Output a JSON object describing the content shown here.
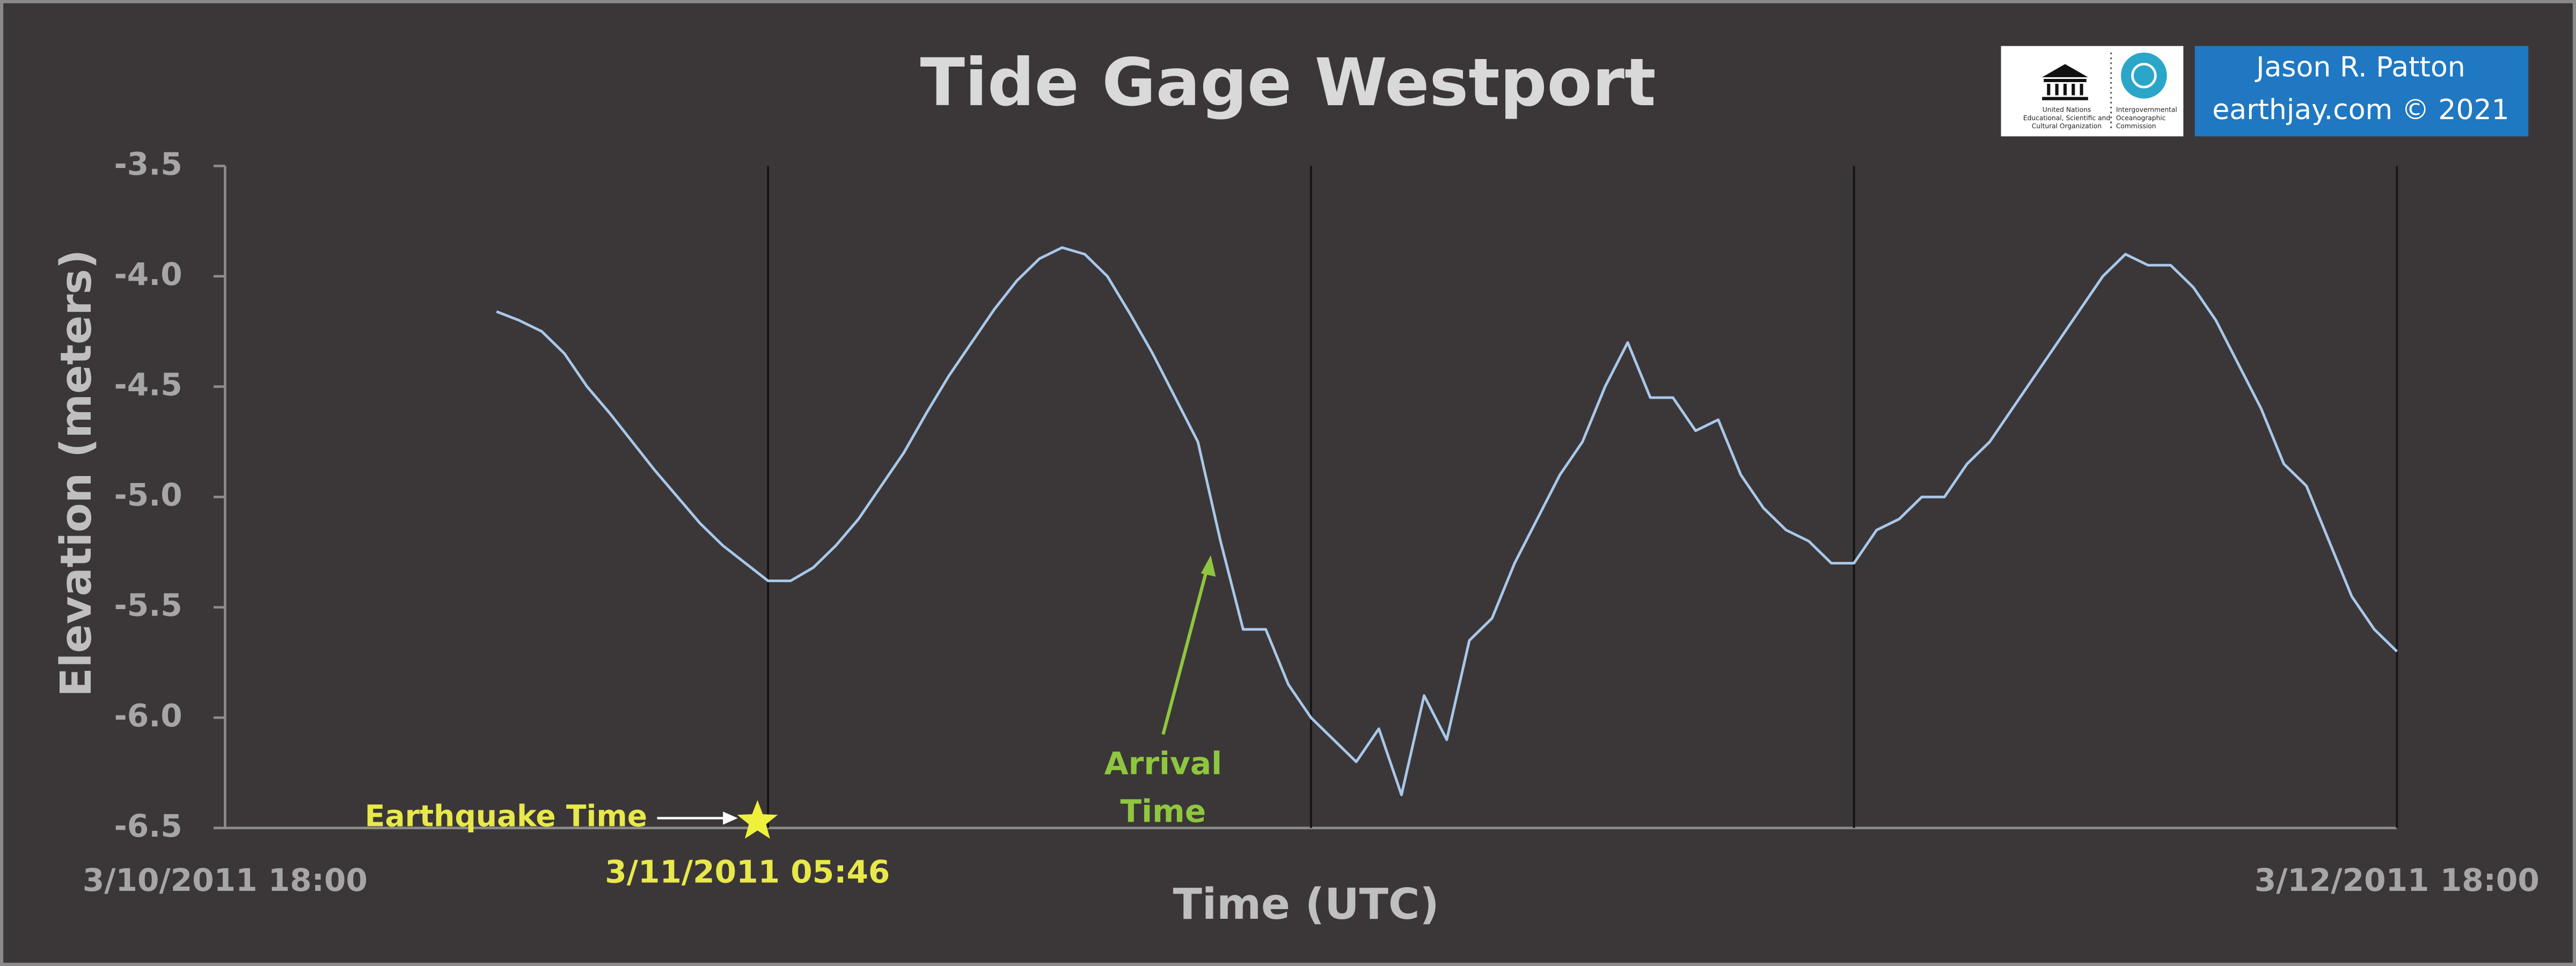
{
  "chart_data": {
    "type": "line",
    "title": "Tide Gage Westport",
    "x_label": "Time (UTC)",
    "y_label": "Elevation (meters)",
    "color": "#a9c8ea",
    "xlim": [
      "3/10/2011 18:00",
      "3/12/2011 18:00"
    ],
    "xticks": [
      "3/10/2011 18:00",
      "3/12/2011 18:00"
    ],
    "xgrid": [
      "3/11/2011 06:00",
      "3/11/2011 18:00",
      "3/12/2011 06:00",
      "3/12/2011 18:00"
    ],
    "ylim": [
      -6.5,
      -3.5
    ],
    "yticks": [
      -6.5,
      {
        "value": -6,
        "label": "-6.0"
      },
      -5.5,
      {
        "value": -5,
        "label": "-5.0"
      },
      -4.5,
      {
        "value": -4,
        "label": "-4.0"
      },
      -3.5
    ],
    "annotations": {
      "earthquake": "Earthquake Time",
      "event_time": "3/11/2011 05:46",
      "arrival": [
        "Arrival",
        "Time"
      ]
    },
    "x": [
      "3/11/2011 00:00",
      "3/11/2011 00:30",
      "3/11/2011 01:00",
      "3/11/2011 01:30",
      "3/11/2011 02:00",
      "3/11/2011 02:30",
      "3/11/2011 03:00",
      "3/11/2011 03:30",
      "3/11/2011 04:00",
      "3/11/2011 04:30",
      "3/11/2011 05:00",
      "3/11/2011 05:30",
      "3/11/2011 06:00",
      "3/11/2011 06:30",
      "3/11/2011 07:00",
      "3/11/2011 07:30",
      "3/11/2011 08:00",
      "3/11/2011 08:30",
      "3/11/2011 09:00",
      "3/11/2011 09:30",
      "3/11/2011 10:00",
      "3/11/2011 10:30",
      "3/11/2011 11:00",
      "3/11/2011 11:30",
      "3/11/2011 12:00",
      "3/11/2011 12:30",
      "3/11/2011 13:00",
      "3/11/2011 13:30",
      "3/11/2011 14:00",
      "3/11/2011 14:30",
      "3/11/2011 15:00",
      "3/11/2011 15:30",
      "3/11/2011 16:00",
      "3/11/2011 16:30",
      "3/11/2011 17:00",
      "3/11/2011 17:30",
      "3/11/2011 18:00",
      "3/11/2011 18:30",
      "3/11/2011 19:00",
      "3/11/2011 19:30",
      "3/11/2011 20:00",
      "3/11/2011 20:30",
      "3/11/2011 21:00",
      "3/11/2011 21:30",
      "3/11/2011 22:00",
      "3/11/2011 22:30",
      "3/11/2011 23:00",
      "3/11/2011 23:30",
      "3/12/2011 00:00",
      "3/12/2011 00:30",
      "3/12/2011 01:00",
      "3/12/2011 01:30",
      "3/12/2011 02:00",
      "3/12/2011 02:30",
      "3/12/2011 03:00",
      "3/12/2011 03:30",
      "3/12/2011 04:00",
      "3/12/2011 04:30",
      "3/12/2011 05:00",
      "3/12/2011 05:30",
      "3/12/2011 06:00",
      "3/12/2011 06:30",
      "3/12/2011 07:00",
      "3/12/2011 07:30",
      "3/12/2011 08:00",
      "3/12/2011 08:30",
      "3/12/2011 09:00",
      "3/12/2011 09:30",
      "3/12/2011 10:00",
      "3/12/2011 10:30",
      "3/12/2011 11:00",
      "3/12/2011 11:30",
      "3/12/2011 12:00",
      "3/12/2011 12:30",
      "3/12/2011 13:00",
      "3/12/2011 13:30",
      "3/12/2011 14:00",
      "3/12/2011 14:30",
      "3/12/2011 15:00",
      "3/12/2011 15:30",
      "3/12/2011 16:00",
      "3/12/2011 16:30",
      "3/12/2011 17:00",
      "3/12/2011 17:30",
      "3/12/2011 18:00"
    ],
    "values": [
      -4.16,
      -4.2,
      -4.25,
      -4.35,
      -4.5,
      -4.62,
      -4.75,
      -4.88,
      -5.0,
      -5.12,
      -5.22,
      -5.3,
      -5.38,
      -5.38,
      -5.32,
      -5.22,
      -5.1,
      -4.95,
      -4.8,
      -4.62,
      -4.45,
      -4.3,
      -4.15,
      -4.02,
      -3.92,
      -3.87,
      -3.9,
      -4.0,
      -4.17,
      -4.35,
      -4.55,
      -4.75,
      -5.2,
      -5.6,
      -5.6,
      -5.85,
      -6.0,
      -6.1,
      -6.2,
      -6.05,
      -6.35,
      -5.9,
      -6.1,
      -5.65,
      -5.55,
      -5.3,
      -5.1,
      -4.9,
      -4.75,
      -4.5,
      -4.3,
      -4.55,
      -4.55,
      -4.7,
      -4.65,
      -4.9,
      -5.05,
      -5.15,
      -5.2,
      -5.3,
      -5.3,
      -5.15,
      -5.1,
      -5.0,
      -5.0,
      -4.85,
      -4.75,
      -4.6,
      -4.45,
      -4.3,
      -4.15,
      -4.0,
      -3.9,
      -3.95,
      -3.95,
      -4.05,
      -4.2,
      -4.4,
      -4.6,
      -4.85,
      -4.95,
      -5.2,
      -5.45,
      -5.6,
      -5.7
    ]
  },
  "logos": {
    "unesco": [
      "United Nations",
      "Educational, Scientific and",
      "Cultural Organization"
    ],
    "ioc": [
      "Intergovernmental",
      "Oceanographic",
      "Commission"
    ],
    "author": "Jason R. Patton",
    "site": "earthjay.com © 2021"
  }
}
